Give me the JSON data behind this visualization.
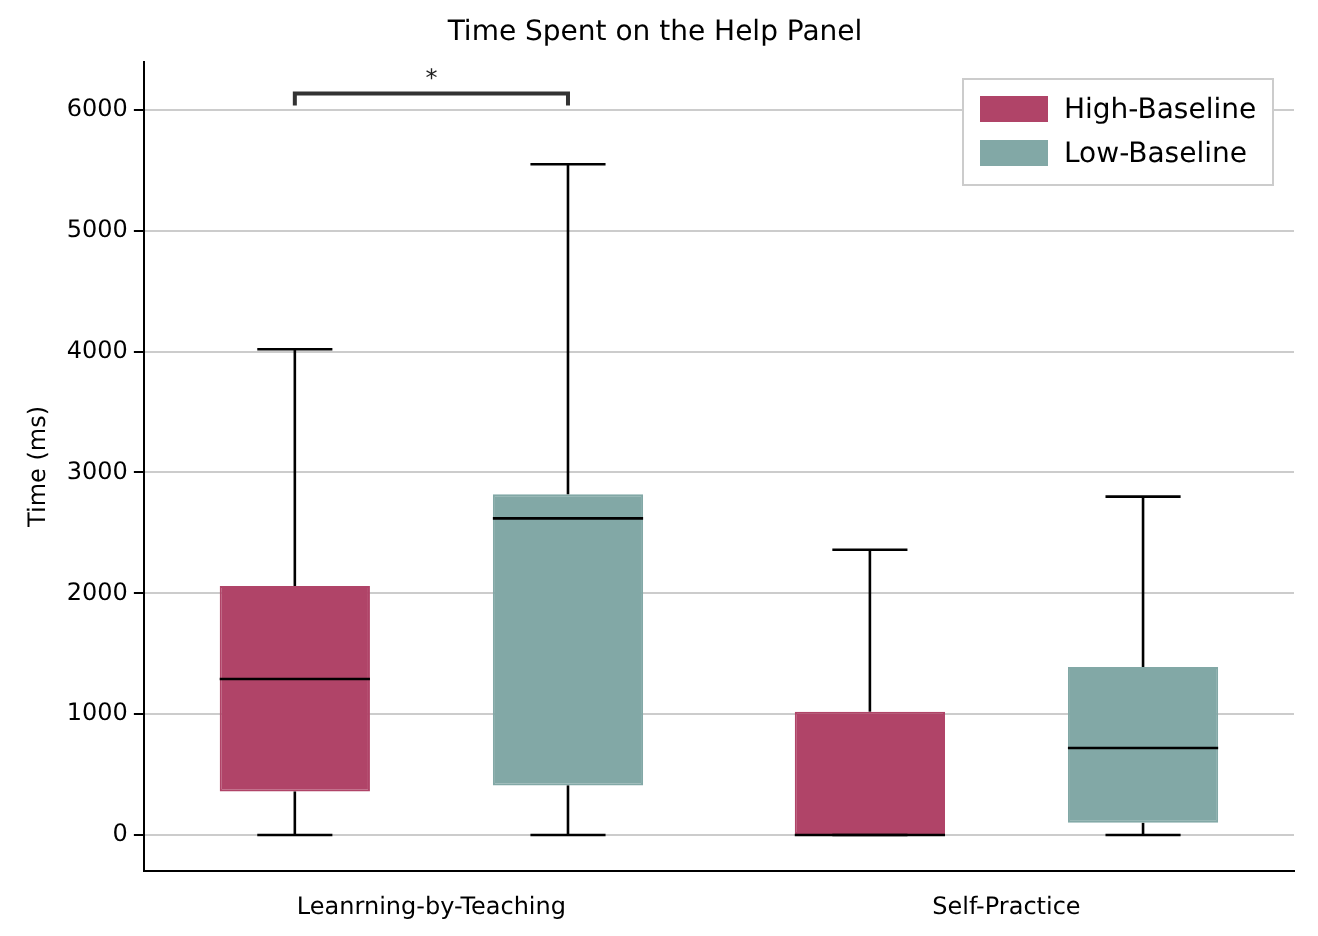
{
  "chart_data": {
    "type": "box",
    "title": "Time Spent on the Help Panel",
    "ylabel": "Time (ms)",
    "categories": [
      "Leanrning-by-Teaching",
      "Self-Practice"
    ],
    "series": [
      {
        "name": "High-Baseline",
        "color": "#b04468",
        "boxes": [
          {
            "low": 0,
            "q1": 360,
            "median": 1290,
            "q3": 2060,
            "high": 4020
          },
          {
            "low": 0,
            "q1": 0,
            "median": 0,
            "q3": 1020,
            "high": 2360
          }
        ]
      },
      {
        "name": "Low-Baseline",
        "color": "#82a8a6",
        "boxes": [
          {
            "low": 0,
            "q1": 410,
            "median": 2620,
            "q3": 2820,
            "high": 5550
          },
          {
            "low": 0,
            "q1": 100,
            "median": 720,
            "q3": 1390,
            "high": 2800
          }
        ]
      }
    ],
    "ylim": [
      -300,
      6400
    ],
    "yticks": [
      0,
      1000,
      2000,
      3000,
      4000,
      5000,
      6000
    ],
    "grid": "y",
    "legend": "top right",
    "annotations": [
      "*"
    ]
  }
}
